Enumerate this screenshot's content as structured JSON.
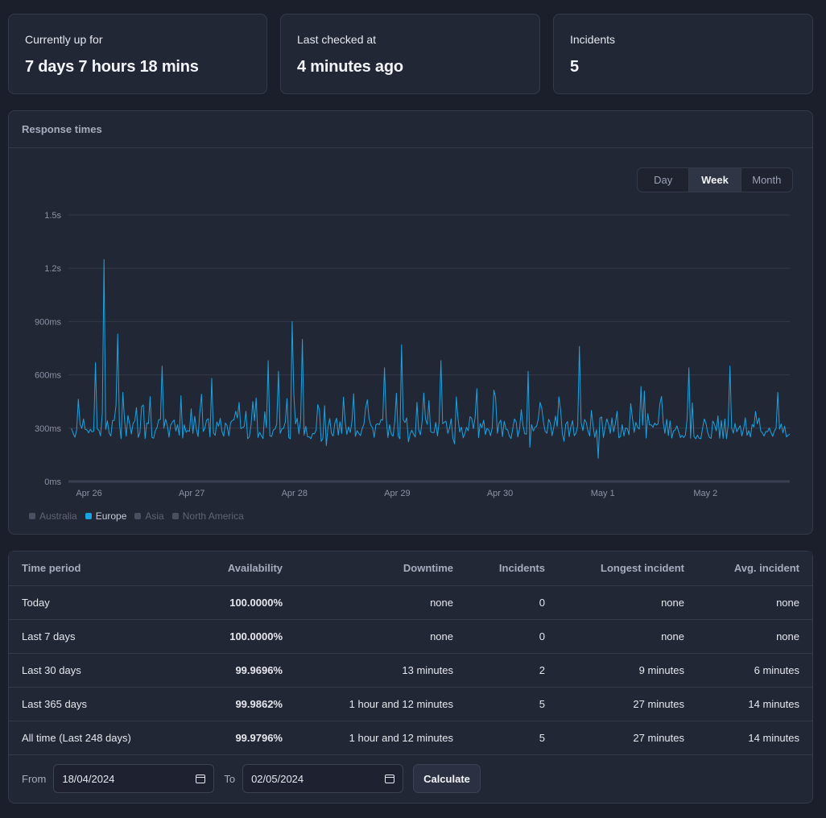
{
  "stats": [
    {
      "label": "Currently up for",
      "value": "7 days 7 hours 18 mins"
    },
    {
      "label": "Last checked at",
      "value": "4 minutes ago"
    },
    {
      "label": "Incidents",
      "value": "5"
    }
  ],
  "response_times": {
    "title": "Response times",
    "ranges": [
      "Day",
      "Week",
      "Month"
    ],
    "active_range": "Week",
    "legend": [
      {
        "name": "Australia",
        "active": false
      },
      {
        "name": "Europe",
        "active": true
      },
      {
        "name": "Asia",
        "active": false
      },
      {
        "name": "North America",
        "active": false
      }
    ]
  },
  "colors": {
    "accent": "#1aa3e0",
    "background": "#1b1f2b",
    "card": "#222735",
    "border": "#343a4a"
  },
  "chart_data": {
    "type": "line",
    "title": "Response times",
    "xlabel": "",
    "ylabel": "",
    "y_ticks": [
      "0ms",
      "300ms",
      "600ms",
      "900ms",
      "1.2s",
      "1.5s"
    ],
    "ylim": [
      0,
      1500
    ],
    "x_ticks": [
      "Apr 26",
      "Apr 27",
      "Apr 28",
      "Apr 29",
      "Apr 30",
      "May 1",
      "May 2"
    ],
    "x_range_days": [
      -0.2,
      6.82
    ],
    "grid": true,
    "legend_position": "bottom-left",
    "series": [
      {
        "name": "Europe",
        "color": "#1aa3e0",
        "peaks": [
          {
            "x": 0.14,
            "y": 1250
          },
          {
            "x": 0.06,
            "y": 670
          },
          {
            "x": 0.28,
            "y": 830
          },
          {
            "x": 0.72,
            "y": 650
          },
          {
            "x": 1.2,
            "y": 580
          },
          {
            "x": 1.74,
            "y": 680
          },
          {
            "x": 1.84,
            "y": 620
          },
          {
            "x": 1.98,
            "y": 900
          },
          {
            "x": 2.08,
            "y": 800
          },
          {
            "x": 2.88,
            "y": 640
          },
          {
            "x": 3.05,
            "y": 770
          },
          {
            "x": 3.43,
            "y": 680
          },
          {
            "x": 4.28,
            "y": 620
          },
          {
            "x": 4.77,
            "y": 760
          },
          {
            "x": 4.95,
            "y": 130
          },
          {
            "x": 5.84,
            "y": 640
          },
          {
            "x": 6.23,
            "y": 650
          }
        ]
      }
    ]
  },
  "table": {
    "headers": [
      "Time period",
      "Availability",
      "Downtime",
      "Incidents",
      "Longest incident",
      "Avg. incident"
    ],
    "rows": [
      [
        "Today",
        "100.0000%",
        "none",
        "0",
        "none",
        "none"
      ],
      [
        "Last 7 days",
        "100.0000%",
        "none",
        "0",
        "none",
        "none"
      ],
      [
        "Last 30 days",
        "99.9696%",
        "13 minutes",
        "2",
        "9 minutes",
        "6 minutes"
      ],
      [
        "Last 365 days",
        "99.9862%",
        "1 hour and 12 minutes",
        "5",
        "27 minutes",
        "14 minutes"
      ],
      [
        "All time (Last 248 days)",
        "99.9796%",
        "1 hour and 12 minutes",
        "5",
        "27 minutes",
        "14 minutes"
      ]
    ],
    "footer": {
      "from_label": "From",
      "from_value": "18/04/2024",
      "to_label": "To",
      "to_value": "02/05/2024",
      "calculate_label": "Calculate"
    }
  }
}
